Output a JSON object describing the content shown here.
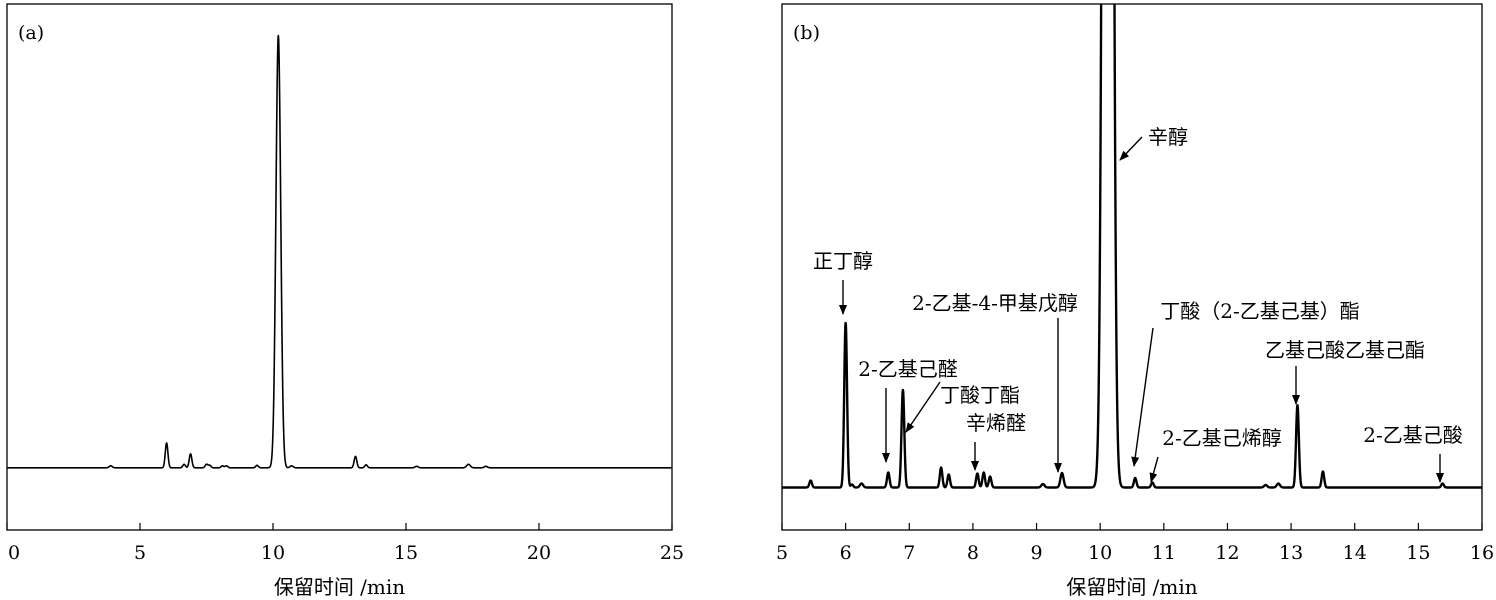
{
  "chart_data": [
    {
      "type": "line",
      "panel_label": "(a)",
      "xlabel": "保留时间 /min",
      "ylabel": "",
      "xlim": [
        0,
        25
      ],
      "ylim": [
        0,
        100
      ],
      "x_ticks": [
        0,
        5,
        10,
        15,
        20,
        25
      ],
      "x_tick_labels": [
        "0",
        "5",
        "10",
        "15",
        "20",
        "25"
      ],
      "baseline": 10.5,
      "peaks": [
        {
          "x": 3.9,
          "h": 0.4,
          "w": 0.06
        },
        {
          "x": 6.0,
          "h": 5.0,
          "w": 0.05
        },
        {
          "x": 6.66,
          "h": 0.7,
          "w": 0.05
        },
        {
          "x": 6.9,
          "h": 2.8,
          "w": 0.05
        },
        {
          "x": 7.5,
          "h": 0.7,
          "w": 0.05
        },
        {
          "x": 7.62,
          "h": 0.5,
          "w": 0.05
        },
        {
          "x": 8.1,
          "h": 0.4,
          "w": 0.05
        },
        {
          "x": 8.25,
          "h": 0.4,
          "w": 0.05
        },
        {
          "x": 9.4,
          "h": 0.5,
          "w": 0.05
        },
        {
          "x": 10.2,
          "h": 87.0,
          "w": 0.09
        },
        {
          "x": 10.7,
          "h": 0.4,
          "w": 0.06
        },
        {
          "x": 13.1,
          "h": 2.3,
          "w": 0.05
        },
        {
          "x": 13.5,
          "h": 0.6,
          "w": 0.05
        },
        {
          "x": 15.4,
          "h": 0.3,
          "w": 0.06
        },
        {
          "x": 17.35,
          "h": 0.7,
          "w": 0.07
        },
        {
          "x": 18.0,
          "h": 0.3,
          "w": 0.06
        }
      ],
      "grid": false,
      "legend": false
    },
    {
      "type": "line",
      "panel_label": "(b)",
      "xlabel": "保留时间 /min",
      "ylabel": "",
      "xlim": [
        5,
        16
      ],
      "ylim": [
        0,
        100
      ],
      "x_ticks": [
        5,
        6,
        7,
        8,
        9,
        10,
        11,
        12,
        13,
        14,
        15,
        16
      ],
      "x_tick_labels": [
        "5",
        "6",
        "7",
        "8",
        "9",
        "10",
        "11",
        "12",
        "13",
        "14",
        "15",
        "16"
      ],
      "baseline": 6.5,
      "peaks": [
        {
          "x": 5.45,
          "h": 1.4,
          "w": 0.02
        },
        {
          "x": 6.0,
          "h": 33.0,
          "w": 0.022
        },
        {
          "x": 6.1,
          "h": 0.6,
          "w": 0.02
        },
        {
          "x": 6.25,
          "h": 0.8,
          "w": 0.025
        },
        {
          "x": 6.67,
          "h": 3.0,
          "w": 0.02
        },
        {
          "x": 6.9,
          "h": 19.5,
          "w": 0.022
        },
        {
          "x": 7.5,
          "h": 4.0,
          "w": 0.02
        },
        {
          "x": 7.62,
          "h": 2.6,
          "w": 0.02
        },
        {
          "x": 8.07,
          "h": 2.8,
          "w": 0.02
        },
        {
          "x": 8.17,
          "h": 3.0,
          "w": 0.02
        },
        {
          "x": 8.27,
          "h": 2.2,
          "w": 0.02
        },
        {
          "x": 9.1,
          "h": 0.7,
          "w": 0.025
        },
        {
          "x": 9.4,
          "h": 2.9,
          "w": 0.025
        },
        {
          "x": 10.12,
          "h": 600.0,
          "w": 0.055
        },
        {
          "x": 10.55,
          "h": 1.9,
          "w": 0.02
        },
        {
          "x": 10.82,
          "h": 1.0,
          "w": 0.02
        },
        {
          "x": 12.6,
          "h": 0.5,
          "w": 0.025
        },
        {
          "x": 12.8,
          "h": 0.8,
          "w": 0.025
        },
        {
          "x": 13.1,
          "h": 16.5,
          "w": 0.022
        },
        {
          "x": 13.5,
          "h": 3.2,
          "w": 0.02
        },
        {
          "x": 15.38,
          "h": 0.8,
          "w": 0.02
        }
      ],
      "annotations": [
        {
          "text": "正丁醇",
          "x": 6.0
        },
        {
          "text": "2-乙基己醛",
          "x": 6.67
        },
        {
          "text": "丁酸丁酯",
          "x": 6.9
        },
        {
          "text": "辛烯醛",
          "x": 8.07
        },
        {
          "text": "2-乙基-4-甲基戊醇",
          "x": 9.4
        },
        {
          "text": "辛醇",
          "x": 10.2
        },
        {
          "text": "丁酸（2-乙基己基）酯",
          "x": 10.55
        },
        {
          "text": "2-乙基己烯醇",
          "x": 10.82
        },
        {
          "text": "乙基己酸乙基己酯",
          "x": 13.1
        },
        {
          "text": "2-乙基己酸",
          "x": 15.38
        }
      ],
      "grid": false,
      "legend": false
    }
  ]
}
